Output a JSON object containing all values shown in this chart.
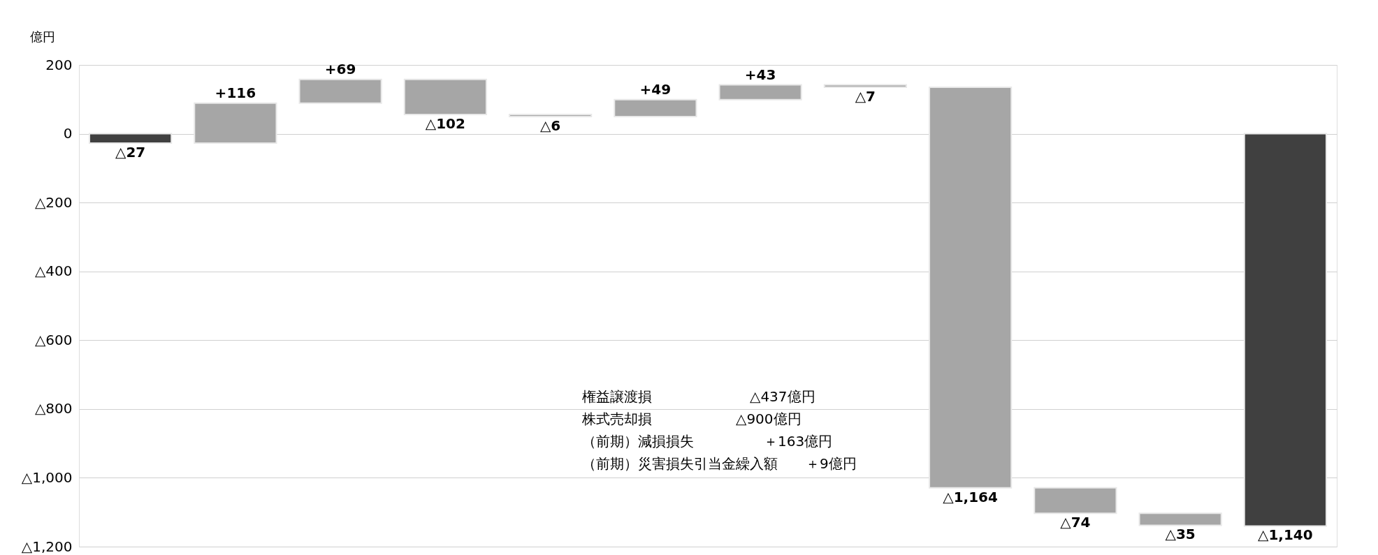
{
  "chart_data": {
    "type": "bar",
    "ylabel": "億円",
    "categories": [
      null,
      null,
      null,
      null,
      null,
      null,
      null,
      null,
      null,
      null,
      null,
      null
    ],
    "values": [
      -27,
      116,
      69,
      -102,
      -6,
      49,
      43,
      -7,
      -1164,
      -74,
      -35,
      -1140
    ],
    "base": [
      0,
      -27,
      89,
      158,
      56,
      50,
      99,
      142,
      135,
      -1029,
      -1103,
      0
    ],
    "colors": [
      "#404040",
      "#a6a6a6",
      "#a6a6a6",
      "#a6a6a6",
      "#a6a6a6",
      "#a6a6a6",
      "#a6a6a6",
      "#a6a6a6",
      "#a6a6a6",
      "#a6a6a6",
      "#a6a6a6",
      "#404040"
    ],
    "value_labels": [
      "△27",
      "+116",
      "+69",
      "△102",
      "△6",
      "+49",
      "+43",
      "△7",
      "△1,164",
      "△74",
      "△35",
      "△1,140"
    ],
    "ylim": [
      -1200,
      200
    ],
    "yticks": [
      200,
      0,
      {
        "value": -200,
        "label": "△200"
      },
      {
        "value": -400,
        "label": "△400"
      },
      {
        "value": -600,
        "label": "△600"
      },
      {
        "value": -800,
        "label": "△800"
      },
      {
        "value": -1000,
        "label": "△1,000"
      },
      {
        "value": -1200,
        "label": "△1,200"
      }
    ],
    "grid": "y",
    "annotations": [
      "権益譲渡損　　　　　　　△437億円",
      "株式売却損　　　　　　△900億円",
      "（前期）減損損失　　　　　＋163億円",
      "（前期）災害損失引当金繰入額　　＋9億円"
    ]
  }
}
